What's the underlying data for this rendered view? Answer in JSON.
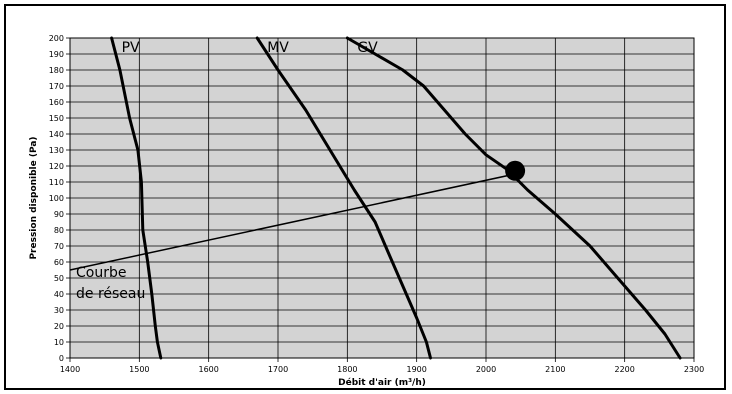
{
  "chart_data": {
    "type": "line",
    "title": "",
    "xlabel": "Débit d'air (m³/h)",
    "ylabel": "Pression disponible (Pa)",
    "xlim": [
      1400,
      2300
    ],
    "ylim": [
      0,
      200
    ],
    "xticks": [
      1400,
      1500,
      1600,
      1700,
      1800,
      1900,
      2000,
      2100,
      2200,
      2300
    ],
    "yticks": [
      0,
      10,
      20,
      30,
      40,
      50,
      60,
      70,
      80,
      90,
      100,
      110,
      120,
      130,
      140,
      150,
      160,
      170,
      180,
      190,
      200
    ],
    "grid": true,
    "colors": {
      "plot_background": "#d3d3d3",
      "grid": "#000000",
      "curve": "#000000"
    },
    "series": [
      {
        "name": "PV",
        "points": [
          [
            1460,
            200
          ],
          [
            1472,
            180
          ],
          [
            1486,
            150
          ],
          [
            1498,
            130
          ],
          [
            1503,
            110
          ],
          [
            1505,
            80
          ],
          [
            1512,
            60
          ],
          [
            1518,
            40
          ],
          [
            1523,
            20
          ],
          [
            1526,
            10
          ],
          [
            1531,
            0
          ]
        ]
      },
      {
        "name": "MV",
        "points": [
          [
            1670,
            200
          ],
          [
            1700,
            180
          ],
          [
            1740,
            155
          ],
          [
            1775,
            130
          ],
          [
            1810,
            105
          ],
          [
            1840,
            85
          ],
          [
            1860,
            65
          ],
          [
            1880,
            45
          ],
          [
            1900,
            25
          ],
          [
            1914,
            10
          ],
          [
            1920,
            0
          ]
        ]
      },
      {
        "name": "GV",
        "points": [
          [
            1800,
            200
          ],
          [
            1840,
            190
          ],
          [
            1880,
            180
          ],
          [
            1910,
            170
          ],
          [
            1940,
            155
          ],
          [
            1970,
            140
          ],
          [
            2000,
            127
          ],
          [
            2030,
            118
          ],
          [
            2060,
            105
          ],
          [
            2100,
            90
          ],
          [
            2150,
            70
          ],
          [
            2190,
            50
          ],
          [
            2230,
            30
          ],
          [
            2258,
            15
          ],
          [
            2280,
            0
          ]
        ]
      }
    ],
    "network_curve": {
      "label_lines": [
        "Courbe",
        "de réseau"
      ],
      "points": [
        [
          1400,
          55
        ],
        [
          2042,
          115
        ]
      ]
    },
    "operating_point": {
      "x": 2042,
      "y": 117
    }
  }
}
